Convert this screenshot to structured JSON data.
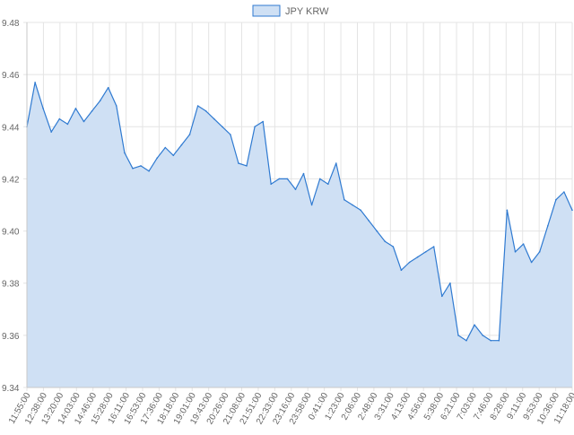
{
  "chart_data": {
    "type": "area",
    "legend_position": "top-center",
    "grid": true,
    "ylim": [
      9.34,
      9.48
    ],
    "y_ticks": [
      "9.34",
      "9.36",
      "9.38",
      "9.40",
      "9.42",
      "9.44",
      "9.46",
      "9.48"
    ],
    "x_tick_labels": [
      "11:55:00",
      "12:38:00",
      "13:20:00",
      "14:03:00",
      "14:46:00",
      "15:28:00",
      "16:11:00",
      "16:53:00",
      "17:36:00",
      "18:18:00",
      "19:01:00",
      "19:43:00",
      "20:26:00",
      "21:08:00",
      "21:51:00",
      "22:33:00",
      "23:16:00",
      "23:58:00",
      "0:41:00",
      "1:23:00",
      "2:06:00",
      "2:48:00",
      "3:31:00",
      "4:13:00",
      "4:56:00",
      "5:38:00",
      "6:21:00",
      "7:03:00",
      "7:46:00",
      "8:28:00",
      "9:11:00",
      "9:53:00",
      "10:36:00",
      "11:18:00"
    ],
    "series": [
      {
        "name": "JPY KRW",
        "color": "#2f7ad1",
        "fill": "#cfe0f4",
        "x": [
          "11:55:00",
          "12:17:00",
          "12:38:00",
          "12:59:00",
          "13:20:00",
          "13:41:00",
          "14:03:00",
          "14:24:00",
          "14:46:00",
          "15:07:00",
          "15:28:00",
          "15:49:00",
          "16:11:00",
          "16:32:00",
          "16:53:00",
          "17:14:00",
          "17:36:00",
          "17:57:00",
          "18:18:00",
          "18:39:00",
          "19:01:00",
          "19:22:00",
          "19:43:00",
          "20:04:00",
          "20:26:00",
          "20:47:00",
          "21:08:00",
          "21:29:00",
          "21:51:00",
          "22:12:00",
          "22:33:00",
          "22:54:00",
          "23:16:00",
          "23:37:00",
          "23:58:00",
          "0:19:00",
          "0:41:00",
          "1:02:00",
          "1:23:00",
          "1:44:00",
          "2:06:00",
          "2:27:00",
          "2:48:00",
          "3:09:00",
          "3:31:00",
          "3:52:00",
          "4:13:00",
          "4:34:00",
          "4:56:00",
          "5:17:00",
          "5:38:00",
          "5:59:00",
          "6:21:00",
          "6:42:00",
          "7:03:00",
          "7:24:00",
          "7:46:00",
          "8:07:00",
          "8:28:00",
          "8:49:00",
          "9:11:00",
          "9:32:00",
          "9:53:00",
          "10:14:00",
          "10:36:00",
          "10:57:00",
          "11:18:00",
          "11:39:00"
        ],
        "values": [
          9.44,
          9.457,
          9.447,
          9.438,
          9.443,
          9.441,
          9.447,
          9.442,
          9.446,
          9.45,
          9.455,
          9.448,
          9.43,
          9.424,
          9.425,
          9.423,
          9.428,
          9.432,
          9.429,
          9.433,
          9.437,
          9.448,
          9.446,
          9.443,
          9.44,
          9.437,
          9.426,
          9.425,
          9.44,
          9.442,
          9.418,
          9.42,
          9.42,
          9.416,
          9.422,
          9.41,
          9.42,
          9.418,
          9.426,
          9.412,
          9.41,
          9.408,
          9.404,
          9.4,
          9.396,
          9.394,
          9.385,
          9.388,
          9.39,
          9.392,
          9.394,
          9.375,
          9.38,
          9.36,
          9.358,
          9.364,
          9.36,
          9.358,
          9.358,
          9.408,
          9.392,
          9.395,
          9.388,
          9.392,
          9.402,
          9.412,
          9.415,
          9.408
        ]
      }
    ]
  }
}
